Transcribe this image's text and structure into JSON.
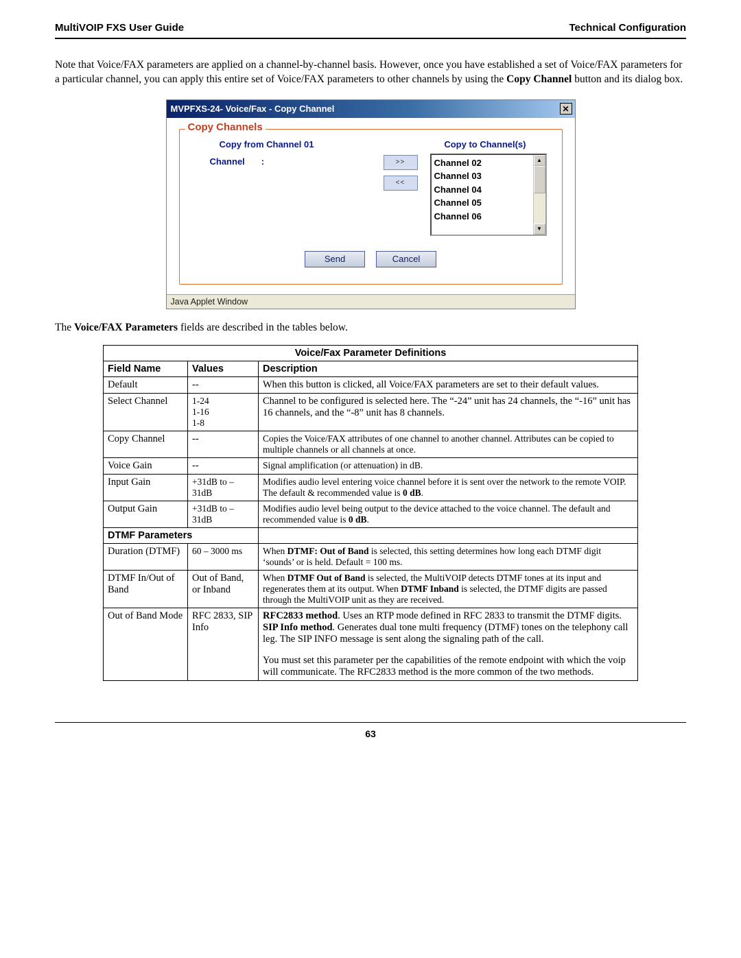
{
  "header": {
    "left": "MultiVOIP FXS User Guide",
    "right": "Technical Configuration"
  },
  "intro": "Note that Voice/FAX parameters are applied on a channel-by-channel basis.  However, once you have established a set of Voice/FAX parameters for a particular channel, you can apply this entire set of Voice/FAX parameters to other channels by using the <b>Copy Channel</b> button and its dialog box.",
  "dialog": {
    "title": "MVPFXS-24- Voice/Fax - Copy Channel",
    "close_glyph": "✕",
    "legend": "Copy Channels",
    "from_label": "Copy from Channel 01",
    "to_label": "Copy to Channel(s)",
    "channel_label": "Channel",
    "channel_colon": ":",
    "arrow_right": ">>",
    "arrow_left": "<<",
    "list_items": [
      "Channel 02",
      "Channel 03",
      "Channel 04",
      "Channel 05",
      "Channel 06"
    ],
    "scroll_up": "▲",
    "scroll_down": "▼",
    "send": "Send",
    "cancel": "Cancel",
    "statusbar": "Java Applet Window"
  },
  "mid_line": "The <b>Voice/FAX Parameters</b> fields are described in the tables below.",
  "table": {
    "title": "Voice/Fax Parameter Definitions",
    "headers": {
      "field": "Field Name",
      "values": "Values",
      "desc": "Description"
    },
    "section_dtmf": "DTMF Parameters",
    "rows": {
      "default": {
        "field": "Default",
        "values": "--",
        "desc": "When this button is clicked, all Voice/FAX parameters are set to their default values."
      },
      "select_channel": {
        "field": "Select Channel",
        "values": "1-24\n1-16\n1-8",
        "desc": "Channel to be configured is selected here.  The “-24” unit has 24 channels, the “-16” unit has 16 channels, and the “-8” unit has 8 channels."
      },
      "copy_channel": {
        "field": "Copy Channel",
        "values": "--",
        "desc": "Copies the Voice/FAX attributes of one channel to another channel. Attributes can be copied to multiple channels or all channels at once."
      },
      "voice_gain": {
        "field": "Voice Gain",
        "values": "--",
        "desc": "Signal amplification (or attenuation) in dB."
      },
      "input_gain": {
        "field": "Input Gain",
        "values": "+31dB to –31dB",
        "desc": "Modifies audio level entering voice channel before it is sent over the network to the remote VOIP. The default & recommended value is <b>0 dB</b>."
      },
      "output_gain": {
        "field": "Output Gain",
        "values": "+31dB to –31dB",
        "desc": "Modifies audio level being output to the device attached to the voice channel.  The default and recommended value is <b>0 dB</b>."
      },
      "duration": {
        "field": "Duration (DTMF)",
        "values": "60 – 3000 ms",
        "desc": "When <b>DTMF: Out of Band</b> is selected, this setting determines how long each DTMF digit ‘sounds’ or is held.  Default = 100 ms."
      },
      "dtmf_band": {
        "field": "DTMF In/Out of Band",
        "values": "Out of Band, or Inband",
        "desc": "When <b>DTMF Out of Band</b> is selected, the MultiVOIP detects DTMF tones at its input and regenerates them at its output.  When <b>DTMF Inband</b> is selected, the DTMF digits are passed through the MultiVOIP unit as they are received."
      },
      "oob_mode": {
        "field": "Out of Band Mode",
        "values": "RFC 2833, SIP Info",
        "desc": "<b>RFC2833 method</b>.  Uses an RTP mode defined in RFC 2833 to transmit the DTMF digits.\n<b>SIP Info method</b>.  Generates dual tone multi frequency (DTMF) tones on the telephony call leg.  The SIP INFO message is sent along the signaling path of the call.",
        "desc2": "You must set this parameter per the capabilities of the remote endpoint with which the voip will communicate.  The RFC2833 method is the more common of the two methods."
      }
    }
  },
  "page_number": "63"
}
